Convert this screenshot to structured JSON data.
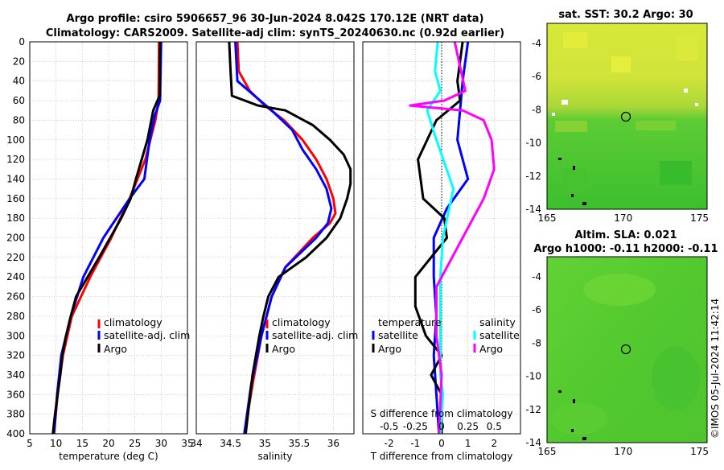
{
  "header": {
    "title_line1": "Argo profile: csiro 5906657_96 30-Jun-2024 8.042S 170.12E (NRT data)",
    "title_line2": "Climatology: CARS2009. Satellite-adj clim: synTS_20240630.nc (0.92d earlier)"
  },
  "colors": {
    "climatology": "#ff0000",
    "satellite": "#0000ff",
    "argo": "#000000",
    "sat_salinity": "#00ffff",
    "argo_salinity": "#ff00ff"
  },
  "legend": {
    "climatology": "climatology",
    "satellite_adj": "satellite-adj. clim",
    "argo": "Argo",
    "temperature": "temperature",
    "salinity": "salinity",
    "satellite": "satellite"
  },
  "chart_data": [
    {
      "type": "line",
      "id": "temperature",
      "xlabel": "temperature (deg C)",
      "xlim": [
        5,
        35
      ],
      "xticks": [
        5,
        10,
        15,
        20,
        25,
        30,
        35
      ],
      "ylim": [
        0,
        400
      ],
      "yticks": [
        0,
        20,
        40,
        60,
        80,
        100,
        120,
        140,
        160,
        180,
        200,
        220,
        240,
        260,
        280,
        300,
        320,
        340,
        360,
        380,
        400
      ],
      "series": [
        {
          "name": "climatology",
          "color": "#ff0000",
          "depth": [
            0,
            60,
            80,
            120,
            160,
            200,
            240,
            280,
            320,
            360,
            400
          ],
          "values": [
            29.6,
            29.5,
            28.9,
            27.0,
            24.0,
            20.5,
            16.5,
            13.0,
            11.3,
            10.3,
            9.6
          ]
        },
        {
          "name": "satellite-adj. clim",
          "color": "#0000ff",
          "depth": [
            0,
            60,
            75,
            100,
            140,
            160,
            200,
            240,
            280,
            320,
            360,
            400
          ],
          "values": [
            30.0,
            29.8,
            28.8,
            27.8,
            26.8,
            24.0,
            19.0,
            15.2,
            12.8,
            11.0,
            10.2,
            9.6
          ]
        },
        {
          "name": "Argo",
          "color": "#000000",
          "depth": [
            0,
            55,
            70,
            100,
            140,
            160,
            180,
            200,
            220,
            240,
            260,
            280,
            300,
            320,
            340,
            360,
            380,
            400
          ],
          "values": [
            29.8,
            29.7,
            28.5,
            27.4,
            25.2,
            24.2,
            22.4,
            20.3,
            18.2,
            16.0,
            13.8,
            12.8,
            11.9,
            11.2,
            10.8,
            10.3,
            9.8,
            9.4
          ]
        }
      ]
    },
    {
      "type": "line",
      "id": "salinity",
      "xlabel": "salinity",
      "xlim": [
        34,
        36.3
      ],
      "xticks": [
        34,
        34.5,
        35,
        35.5,
        36
      ],
      "ylim": [
        0,
        400
      ],
      "series": [
        {
          "name": "climatology",
          "color": "#ff0000",
          "depth": [
            0,
            30,
            50,
            65,
            80,
            100,
            120,
            140,
            160,
            175,
            185,
            200,
            230,
            260,
            300,
            350,
            400
          ],
          "values": [
            34.6,
            34.62,
            34.78,
            35.0,
            35.28,
            35.55,
            35.75,
            35.9,
            36.0,
            36.03,
            35.95,
            35.7,
            35.3,
            35.1,
            34.95,
            34.82,
            34.7
          ]
        },
        {
          "name": "satellite-adj. clim",
          "color": "#0000ff",
          "depth": [
            0,
            40,
            55,
            70,
            90,
            110,
            130,
            150,
            170,
            185,
            200,
            230,
            260,
            300,
            350,
            400
          ],
          "values": [
            34.57,
            34.6,
            34.85,
            35.1,
            35.4,
            35.55,
            35.75,
            35.9,
            35.97,
            35.92,
            35.75,
            35.3,
            35.1,
            34.95,
            34.8,
            34.7
          ]
        },
        {
          "name": "Argo",
          "color": "#000000",
          "depth": [
            0,
            30,
            55,
            65,
            70,
            85,
            100,
            115,
            130,
            145,
            160,
            180,
            200,
            220,
            240,
            260,
            280,
            300,
            340,
            400
          ],
          "values": [
            34.48,
            34.5,
            34.52,
            34.9,
            35.3,
            35.7,
            35.95,
            36.15,
            36.25,
            36.25,
            36.2,
            36.1,
            35.9,
            35.6,
            35.2,
            35.05,
            34.98,
            34.92,
            34.82,
            34.72
          ]
        }
      ]
    },
    {
      "type": "line",
      "id": "difference",
      "xlabel": "T difference from climatology",
      "xlabel_top": "S difference from climatology",
      "xlim": [
        -3,
        3
      ],
      "xticks": [
        -2,
        -1,
        0,
        1,
        2
      ],
      "top_tick_labels": [
        "-0.5",
        "-0.25",
        "0",
        "0.25",
        "0.5"
      ],
      "ylim": [
        0,
        400
      ],
      "series": [
        {
          "name": "temperature satellite",
          "color": "#0000ff",
          "depth": [
            0,
            40,
            70,
            100,
            140,
            170,
            200,
            240,
            280,
            320,
            360,
            400
          ],
          "values": [
            1.0,
            0.8,
            0.7,
            0.6,
            1.0,
            0.2,
            -0.3,
            -0.3,
            -0.2,
            -0.3,
            -0.2,
            -0.1
          ]
        },
        {
          "name": "temperature Argo",
          "color": "#000000",
          "depth": [
            0,
            40,
            60,
            80,
            120,
            160,
            180,
            200,
            240,
            270,
            300,
            320,
            340,
            360,
            400
          ],
          "values": [
            0.8,
            0.6,
            0.7,
            -0.2,
            -0.9,
            -0.7,
            0.1,
            0.2,
            -1.0,
            -1.0,
            -0.6,
            0.0,
            -0.4,
            0.0,
            0.0
          ]
        },
        {
          "name": "salinity satellite",
          "color": "#00ffff",
          "depth": [
            0,
            30,
            50,
            70,
            100,
            150,
            200,
            240,
            300,
            340,
            360,
            400
          ],
          "values": [
            -0.15,
            -0.25,
            -0.05,
            -0.55,
            -0.2,
            0.45,
            0.05,
            -0.05,
            -0.05,
            -0.05,
            0.05,
            -0.05
          ]
        },
        {
          "name": "salinity Argo",
          "color": "#ff00ff",
          "depth": [
            0,
            50,
            60,
            65,
            70,
            80,
            100,
            130,
            160,
            200,
            250,
            300,
            340,
            400
          ],
          "values": [
            0.5,
            0.9,
            0.1,
            -1.2,
            0.8,
            1.6,
            1.9,
            2.0,
            1.6,
            0.8,
            -0.2,
            -0.2,
            0.0,
            -0.1
          ]
        }
      ]
    }
  ],
  "maps": {
    "sst_title": "sat. SST: 30.2 Argo: 30",
    "sla_title1": "Altim. SLA: 0.021",
    "sla_title2": "Argo h1000: -0.11 h2000: -0.11",
    "x_ticks": [
      "165",
      "170",
      "175"
    ],
    "y_ticks": [
      "-4",
      "-6",
      "-8",
      "-10",
      "-12",
      "-14"
    ]
  },
  "watermark": "©IMOS 05-Jul-2024 11:42:14"
}
